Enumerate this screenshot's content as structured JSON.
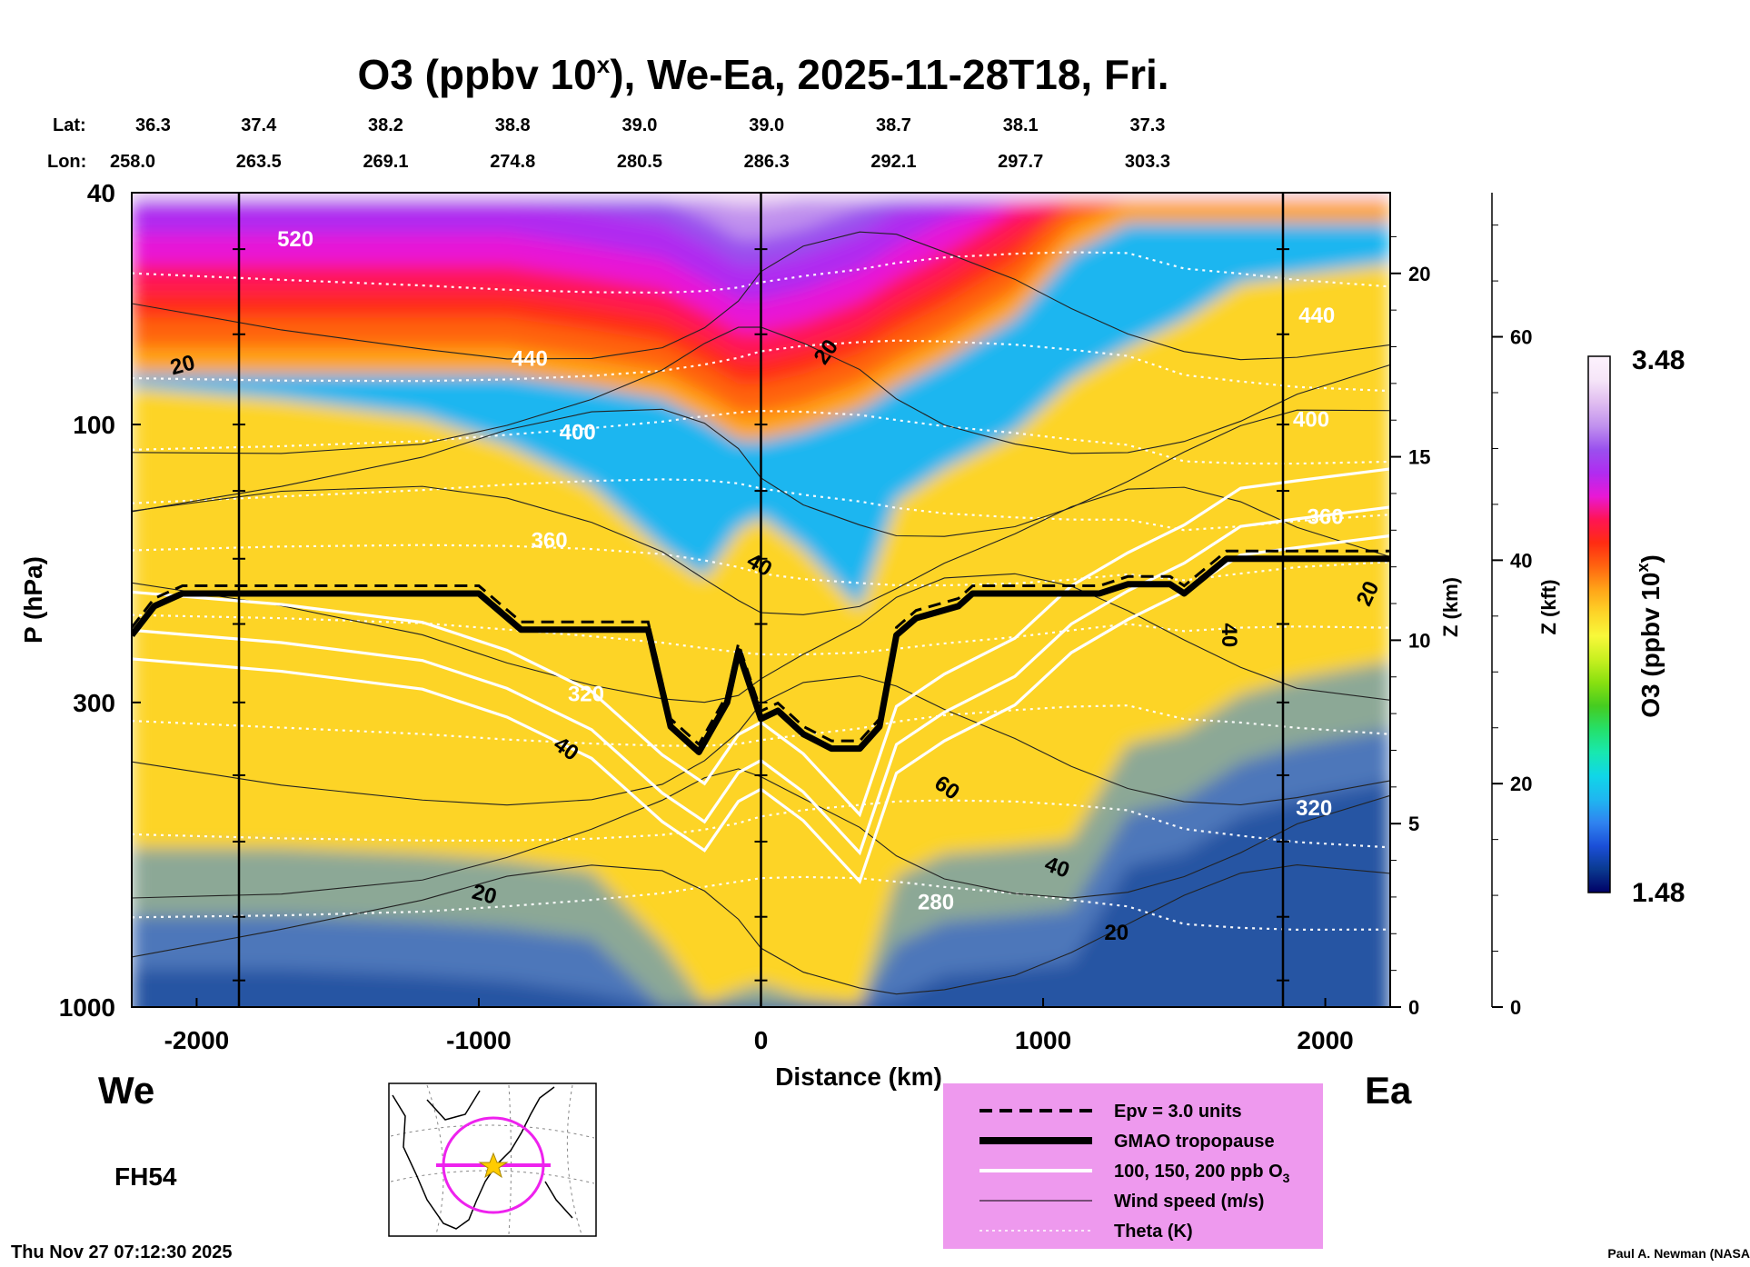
{
  "chart_data": {
    "type": "heatmap",
    "title": "O3 (ppbv 10",
    "title_superscript": "x",
    "title_suffix": "), We-Ea, 2025-11-28T18, Fri.",
    "xlabel": "Distance (km)",
    "ylabel": "P (hPa)",
    "z_km_label": "Z (km)",
    "z_kft_label": "Z (kft)",
    "colorbar_label": "O3 (ppbv 10",
    "colorbar_label_superscript": "x",
    "colorbar_label_suffix": ")",
    "colorbar_range": [
      1.48,
      3.48
    ],
    "colorbar_min_label": "1.48",
    "colorbar_max_label": "3.48",
    "x_range": [
      -2230,
      2230
    ],
    "p_range": [
      1000,
      40
    ],
    "p_scale": "log",
    "x_ticks": [
      -2000,
      -1000,
      0,
      1000,
      2000
    ],
    "x_tick_labels": [
      "-2000",
      "-1000",
      "0",
      "1000",
      "2000"
    ],
    "p_ticks": [
      40,
      100,
      300,
      1000
    ],
    "p_tick_labels": [
      "40",
      "100",
      "300",
      "1000"
    ],
    "z_km_ticks": [
      0,
      5,
      10,
      15,
      20
    ],
    "z_km_tick_labels": [
      "0",
      "5",
      "10",
      "15",
      "20"
    ],
    "z_kft_ticks": [
      0,
      20,
      40,
      60
    ],
    "z_kft_tick_labels": [
      "0",
      "20",
      "40",
      "60"
    ],
    "lat_header": "Lat:",
    "lon_header": "Lon:",
    "location_x": [
      -2230,
      -1780,
      -1330,
      -880,
      -430,
      20,
      470,
      920,
      1370
    ],
    "lat": [
      "36.3",
      "37.4",
      "38.2",
      "38.8",
      "39.0",
      "39.0",
      "38.7",
      "38.1",
      "37.3"
    ],
    "lon": [
      "258.0",
      "263.5",
      "269.1",
      "274.8",
      "280.5",
      "286.3",
      "292.1",
      "297.7",
      "303.3"
    ],
    "vertical_reference_lines_x": [
      -1850,
      0,
      1850
    ],
    "gmao_tropopause": {
      "x": [
        -2230,
        -2150,
        -2050,
        -1000,
        -850,
        -650,
        -400,
        -320,
        -220,
        -120,
        -80,
        0,
        60,
        150,
        250,
        350,
        420,
        480,
        550,
        700,
        750,
        1100,
        1200,
        1300,
        1450,
        1500,
        1650,
        2230
      ],
      "p": [
        230,
        205,
        195,
        195,
        225,
        225,
        225,
        330,
        365,
        300,
        245,
        320,
        310,
        340,
        360,
        360,
        330,
        230,
        215,
        205,
        195,
        195,
        195,
        188,
        188,
        195,
        170,
        170
      ]
    },
    "theta_labels": [
      {
        "x": -1650,
        "p": 48,
        "text": "520"
      },
      {
        "x": -820,
        "p": 77,
        "text": "440"
      },
      {
        "x": -650,
        "p": 103,
        "text": "400"
      },
      {
        "x": -750,
        "p": 158,
        "text": "360"
      },
      {
        "x": -620,
        "p": 290,
        "text": "320"
      },
      {
        "x": 620,
        "p": 660,
        "text": "280"
      },
      {
        "x": 1970,
        "p": 65,
        "text": "440"
      },
      {
        "x": 1950,
        "p": 98,
        "text": "400"
      },
      {
        "x": 2000,
        "p": 144,
        "text": "360"
      },
      {
        "x": 1960,
        "p": 455,
        "text": "320"
      }
    ],
    "wind_labels": [
      {
        "x": -2050,
        "p": 79,
        "text": "20"
      },
      {
        "x": 230,
        "p": 75,
        "text": "20"
      },
      {
        "x": -5,
        "p": 174,
        "text": "40"
      },
      {
        "x": -690,
        "p": 360,
        "text": "40"
      },
      {
        "x": -980,
        "p": 640,
        "text": "20"
      },
      {
        "x": 1660,
        "p": 230,
        "text": "40"
      },
      {
        "x": 2150,
        "p": 195,
        "text": "20"
      },
      {
        "x": 660,
        "p": 420,
        "text": "60"
      },
      {
        "x": 1050,
        "p": 575,
        "text": "40"
      },
      {
        "x": 1260,
        "p": 745,
        "text": "20"
      }
    ],
    "legend": [
      {
        "label": "Epv = 3.0 units",
        "style": "dashed"
      },
      {
        "label": "GMAO tropopause",
        "style": "thick"
      },
      {
        "label": "100, 150, 200 ppb O",
        "sub": "3",
        "style": "white"
      },
      {
        "label": "Wind speed (m/s)",
        "style": "thin"
      },
      {
        "label": "Theta (K)",
        "style": "dotted"
      }
    ],
    "legend_position": "bottom-right",
    "grid": false
  },
  "labels": {
    "west": "We",
    "east": "Ea",
    "forecast_hour": "FH54",
    "timestamp": "Thu Nov 27 07:12:30 2025",
    "credit": "Paul A. Newman (NASA"
  },
  "colors": {
    "legend_bg": "#ee99ee",
    "map_circle": "#ee22ee",
    "map_star": "#ffcc00",
    "colormap": [
      "#000066",
      "#0a3a90",
      "#1b4fd8",
      "#2f83f0",
      "#1fb6f0",
      "#10d6e8",
      "#18e8b0",
      "#25e06a",
      "#45cc20",
      "#88e010",
      "#c8f020",
      "#f8f83a",
      "#fdd428",
      "#ffa418",
      "#ff6410",
      "#ff2c12",
      "#ff1454",
      "#e818d6",
      "#b02cf0",
      "#9a50ee",
      "#c090ee",
      "#e0bcf0",
      "#f6e6f8",
      "#fdf2fd"
    ]
  },
  "icons": {
    "map_inset": "globe-map-icon",
    "star": "star-icon"
  }
}
